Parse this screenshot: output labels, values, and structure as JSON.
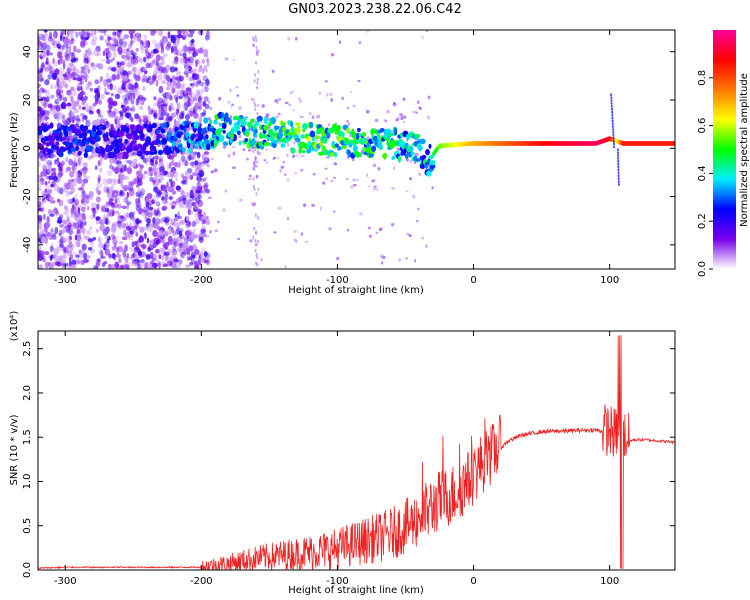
{
  "title": "GN03.2023.238.22.06.C42",
  "colors": {
    "snr_line": "#ee2222",
    "frame": "#000000"
  },
  "chart_data": [
    {
      "type": "heatmap",
      "xlabel": "Height of straight line (km)",
      "ylabel": "Frequency (Hz)",
      "xlim": [
        -320,
        148
      ],
      "ylim": [
        -50,
        49
      ],
      "x_ticks": [
        -300,
        -200,
        -100,
        0,
        100
      ],
      "x_tick_labels": [
        "-300",
        "-200",
        "-100",
        "0",
        "100"
      ],
      "y_ticks": [
        -40,
        -20,
        0,
        20,
        40
      ],
      "y_tick_labels": [
        "-40",
        "-20",
        "0",
        "20",
        "40"
      ],
      "colorbar": {
        "label": "Normalized spectral amplitude",
        "range": [
          0,
          1
        ],
        "ticks": [
          0,
          0.2,
          0.4,
          0.6,
          0.8
        ],
        "tick_labels": [
          "0.0",
          "0.2",
          "0.4",
          "0.6",
          "0.8"
        ],
        "colormap": [
          "#ffffff",
          "#7700ee",
          "#0000ff",
          "#00eeff",
          "#00ff00",
          "#ffff00",
          "#ff7700",
          "#ff0000",
          "#ff0099"
        ]
      },
      "trace": {
        "x": [
          -320,
          -280,
          -250,
          -200,
          -185,
          -150,
          -120,
          -100,
          -80,
          -60,
          -40,
          -33,
          -25,
          0,
          30,
          60,
          90,
          100,
          105,
          110,
          148
        ],
        "freq": [
          4,
          3,
          3,
          5,
          8,
          6,
          4,
          3,
          3,
          2,
          -1,
          -5,
          1,
          2,
          2,
          2,
          2,
          4,
          3,
          2,
          2
        ],
        "amplitude": [
          0.25,
          0.3,
          0.2,
          0.4,
          0.5,
          0.5,
          0.55,
          0.55,
          0.5,
          0.5,
          0.45,
          0.4,
          0.55,
          0.7,
          0.8,
          0.9,
          0.95,
          0.9,
          0.6,
          0.85,
          0.85
        ]
      }
    },
    {
      "type": "line",
      "xlabel": "Height of straight line (km)",
      "ylabel": "SNR (10 * v/v)",
      "yscale_label": "(x10⁴)",
      "xlim": [
        -320,
        148
      ],
      "ylim": [
        0,
        2.7
      ],
      "x_ticks": [
        -300,
        -200,
        -100,
        0,
        100
      ],
      "x_tick_labels": [
        "-300",
        "-200",
        "-100",
        "0",
        "100"
      ],
      "y_ticks": [
        0,
        0.5,
        1.0,
        1.5,
        2.0,
        2.5
      ],
      "y_tick_labels": [
        "0.0",
        "0.5",
        "1.0",
        "1.5",
        "2.0",
        "2.5"
      ],
      "series": [
        {
          "x": [
            -320,
            -300,
            -250,
            -200,
            -180,
            -160,
            -140,
            -120,
            -100,
            -80,
            -60,
            -45,
            -35,
            -25,
            -15,
            -5,
            5,
            15,
            25,
            35,
            50,
            70,
            90,
            100,
            104,
            107,
            110,
            113,
            118,
            125,
            135,
            148
          ],
          "y": [
            0.02,
            0.03,
            0.03,
            0.03,
            0.06,
            0.12,
            0.15,
            0.18,
            0.22,
            0.3,
            0.38,
            0.5,
            0.62,
            0.75,
            0.82,
            0.95,
            1.15,
            1.3,
            1.45,
            1.52,
            1.56,
            1.57,
            1.58,
            1.55,
            1.5,
            1.6,
            1.5,
            1.45,
            1.47,
            1.47,
            1.46,
            1.44
          ]
        }
      ]
    }
  ]
}
